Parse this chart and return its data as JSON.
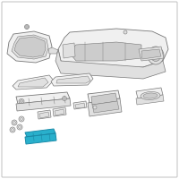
{
  "bg_color": "#ffffff",
  "border_color": "#c8c8c8",
  "line_color": "#777777",
  "fill_light": "#f0f0f0",
  "fill_mid": "#e0e0e0",
  "fill_dark": "#cccccc",
  "highlight_color": "#29b0cc",
  "highlight_edge": "#1a8aa8",
  "fig_width": 2.0,
  "fig_height": 2.0,
  "dpi": 100,
  "lw": 0.55
}
